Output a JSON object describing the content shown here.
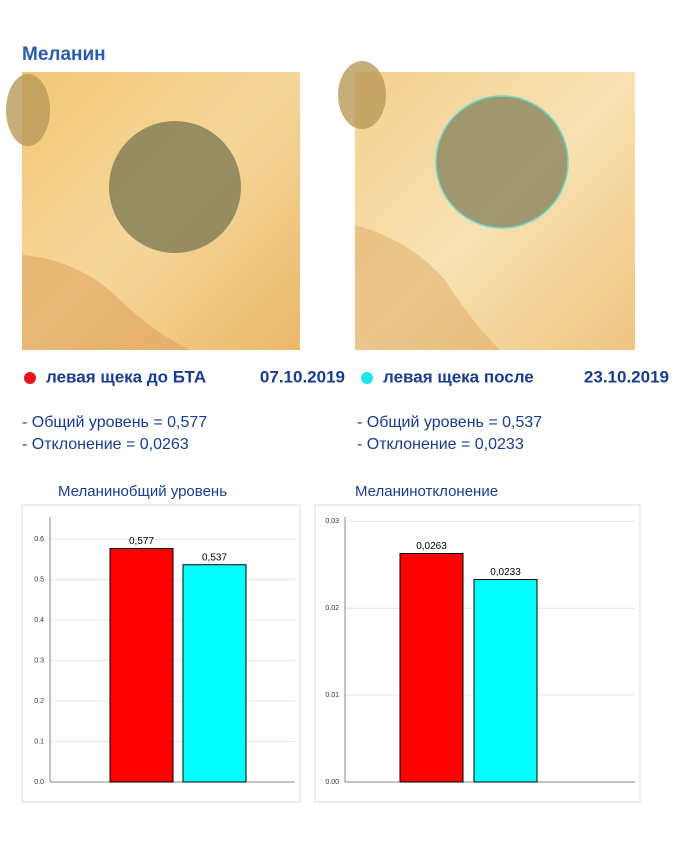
{
  "title": "Меланин",
  "samples": [
    {
      "label": "левая щека до БТА",
      "date": "07.10.2019",
      "color": "#e8141c",
      "stats": [
        "- Общий уровень = 0,577",
        "- Отклонение = 0,0263"
      ]
    },
    {
      "label": "левая щека после",
      "date": "23.10.2019",
      "color": "#19e6ea",
      "stats": [
        "- Общий уровень = 0,537",
        "- Отклонение = 0,0233"
      ]
    }
  ],
  "chart_data": [
    {
      "type": "bar",
      "title": "Меланинобщий уровень",
      "values": [
        0.577,
        0.537
      ],
      "value_labels": [
        "0,577",
        "0,537"
      ],
      "colors": [
        "#ff0000",
        "#00ffff"
      ],
      "ylim": [
        0,
        0.655
      ],
      "yticks": [
        {
          "value": 0,
          "label": "0.0"
        },
        0.1,
        0.2,
        0.3,
        0.4,
        0.5,
        0.6
      ],
      "grid": true
    },
    {
      "type": "bar",
      "title": "Меланинотклонение",
      "values": [
        0.0263,
        0.0233
      ],
      "value_labels": [
        "0,0263",
        "0,0233"
      ],
      "colors": [
        "#ff0000",
        "#00ffff"
      ],
      "ylim": [
        0,
        0.0305
      ],
      "yticks": [
        {
          "value": 0,
          "label": "0.00"
        },
        0.01,
        0.02,
        0.03
      ],
      "grid": true
    }
  ]
}
